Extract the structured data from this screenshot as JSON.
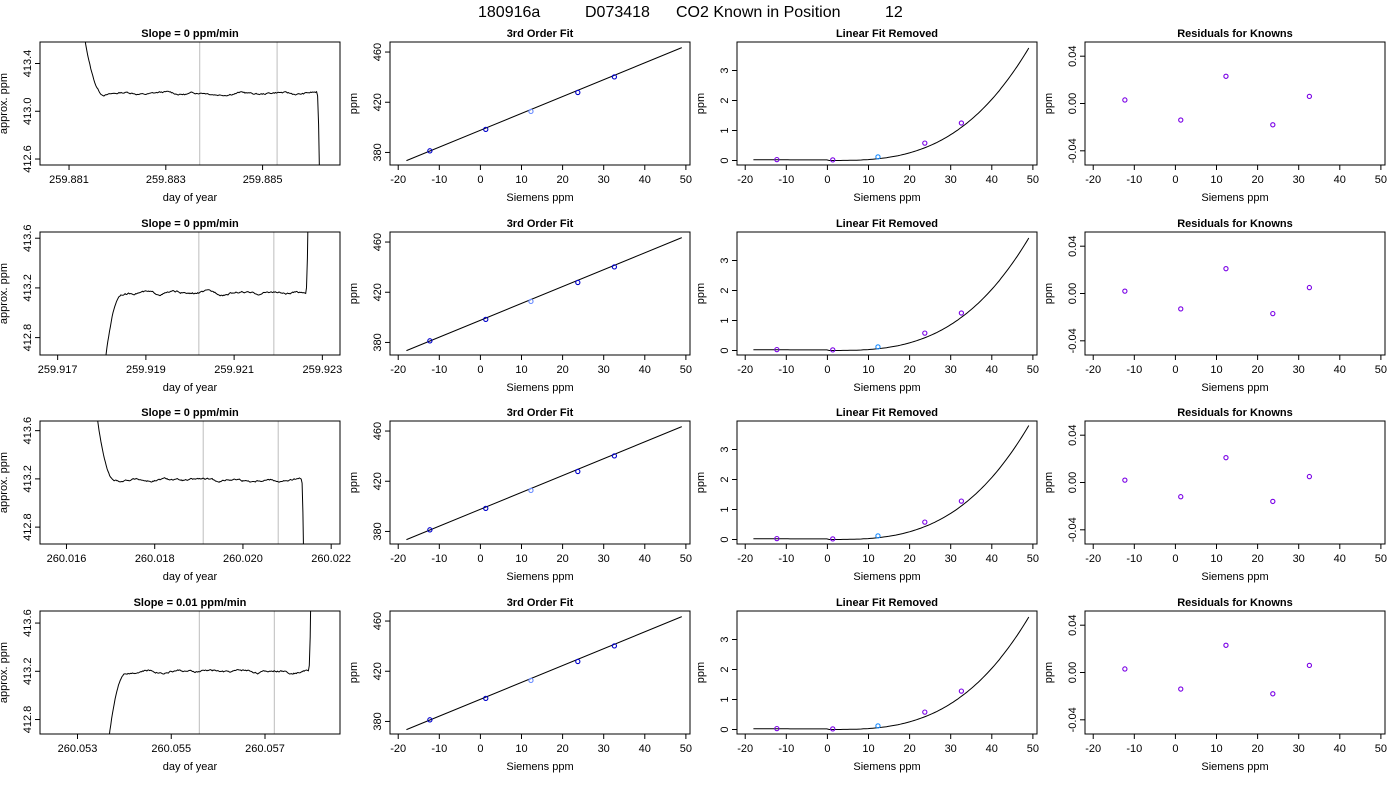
{
  "figure": {
    "title_parts": [
      "180916a",
      "D073418",
      "CO2 Known in Position",
      "12"
    ]
  },
  "chart_data": [
    {
      "id": "r1-trace",
      "type": "line",
      "title": "Slope =  0  ppm/min",
      "xlabel": "day of year",
      "ylabel": "approx. ppm",
      "xlim": [
        259.8804,
        259.8866
      ],
      "ylim": [
        412.55,
        413.58
      ],
      "xticks": [
        259.881,
        259.883,
        259.885
      ],
      "xtick_decimals": 3,
      "yticks": [
        412.6,
        413.0,
        413.4
      ],
      "ytick_decimals": 1,
      "vlines": [
        259.8837,
        259.8853
      ],
      "level": 413.15,
      "trace": {
        "x0": 259.8812,
        "x1": 259.8862,
        "lead": "down",
        "trail": "down"
      }
    },
    {
      "id": "r1-fit",
      "type": "scatter+line",
      "title": "3rd Order Fit",
      "xlabel": "Siemens ppm",
      "ylabel": "ppm",
      "xlim": [
        -22,
        51
      ],
      "ylim": [
        370,
        468
      ],
      "xticks": [
        -20,
        -10,
        0,
        10,
        20,
        30,
        40,
        50
      ],
      "xtick_decimals": 0,
      "yticks": [
        380,
        420,
        460
      ],
      "ytick_decimals": 0,
      "points": [
        {
          "x": -12.3,
          "y": 381.3
        },
        {
          "x": 1.3,
          "y": 398.4
        },
        {
          "x": 12.3,
          "y": 412.7
        },
        {
          "x": 23.7,
          "y": 427.8
        },
        {
          "x": 32.6,
          "y": 440.2
        }
      ],
      "fit": {
        "x0": -18,
        "x1": 49,
        "y0": 373.5,
        "y1": 463.5
      }
    },
    {
      "id": "r1-lin",
      "type": "scatter+line",
      "title": "Linear Fit Removed",
      "xlabel": "Siemens ppm",
      "ylabel": "ppm",
      "xlim": [
        -22,
        51
      ],
      "ylim": [
        -0.15,
        3.95
      ],
      "xticks": [
        -20,
        -10,
        0,
        10,
        20,
        30,
        40,
        50
      ],
      "xtick_decimals": 0,
      "yticks": [
        0,
        1,
        2,
        3
      ],
      "ytick_decimals": 0,
      "points": [
        {
          "x": -12.3,
          "y": 0.03
        },
        {
          "x": 1.3,
          "y": 0.02
        },
        {
          "x": 12.3,
          "y": 0.12
        },
        {
          "x": 23.7,
          "y": 0.58
        },
        {
          "x": 32.6,
          "y": 1.25
        }
      ],
      "curve_x": [
        -18,
        49
      ],
      "curve_end": 3.75
    },
    {
      "id": "r1-res",
      "type": "scatter",
      "title": "Residuals for Knowns",
      "xlabel": "Siemens ppm",
      "ylabel": "ppm",
      "xlim": [
        -22,
        51
      ],
      "ylim": [
        -0.052,
        0.052
      ],
      "xticks": [
        -20,
        -10,
        0,
        10,
        20,
        30,
        40,
        50
      ],
      "xtick_decimals": 0,
      "yticks": [
        -0.04,
        0.0,
        0.04
      ],
      "ytick_decimals": 2,
      "points": [
        {
          "x": -12.3,
          "y": 0.003
        },
        {
          "x": 1.3,
          "y": -0.014
        },
        {
          "x": 12.3,
          "y": 0.023
        },
        {
          "x": 23.7,
          "y": -0.018
        },
        {
          "x": 32.6,
          "y": 0.006
        }
      ]
    },
    {
      "id": "r2-trace",
      "type": "line",
      "title": "Slope =  0  ppm/min",
      "xlabel": "day of year",
      "ylabel": "approx. ppm",
      "xlim": [
        259.9166,
        259.9234
      ],
      "ylim": [
        412.66,
        413.65
      ],
      "xticks": [
        259.917,
        259.919,
        259.921,
        259.923
      ],
      "xtick_decimals": 3,
      "yticks": [
        412.8,
        413.2,
        413.6
      ],
      "ytick_decimals": 1,
      "vlines": [
        259.9202,
        259.9219
      ],
      "level": 413.16,
      "trace": {
        "x0": 259.918,
        "x1": 259.9227,
        "lead": "up",
        "trail": "up"
      }
    },
    {
      "id": "r2-fit",
      "type": "scatter+line",
      "title": "3rd Order Fit",
      "xlabel": "Siemens ppm",
      "ylabel": "ppm",
      "xlim": [
        -22,
        51
      ],
      "ylim": [
        370,
        468
      ],
      "xticks": [
        -20,
        -10,
        0,
        10,
        20,
        30,
        40,
        50
      ],
      "xtick_decimals": 0,
      "yticks": [
        380,
        420,
        460
      ],
      "ytick_decimals": 0,
      "points": [
        {
          "x": -12.3,
          "y": 381.3
        },
        {
          "x": 1.3,
          "y": 398.4
        },
        {
          "x": 12.3,
          "y": 412.7
        },
        {
          "x": 23.7,
          "y": 427.8
        },
        {
          "x": 32.6,
          "y": 440.2
        }
      ],
      "fit": {
        "x0": -18,
        "x1": 49,
        "y0": 373.5,
        "y1": 463.5
      }
    },
    {
      "id": "r2-lin",
      "type": "scatter+line",
      "title": "Linear Fit Removed",
      "xlabel": "Siemens ppm",
      "ylabel": "ppm",
      "xlim": [
        -22,
        51
      ],
      "ylim": [
        -0.15,
        3.95
      ],
      "xticks": [
        -20,
        -10,
        0,
        10,
        20,
        30,
        40,
        50
      ],
      "xtick_decimals": 0,
      "yticks": [
        0,
        1,
        2,
        3
      ],
      "ytick_decimals": 0,
      "points": [
        {
          "x": -12.3,
          "y": 0.03
        },
        {
          "x": 1.3,
          "y": 0.02
        },
        {
          "x": 12.3,
          "y": 0.12
        },
        {
          "x": 23.7,
          "y": 0.58
        },
        {
          "x": 32.6,
          "y": 1.25
        }
      ],
      "curve_x": [
        -18,
        49
      ],
      "curve_end": 3.75
    },
    {
      "id": "r2-res",
      "type": "scatter",
      "title": "Residuals for Knowns",
      "xlabel": "Siemens ppm",
      "ylabel": "ppm",
      "xlim": [
        -22,
        51
      ],
      "ylim": [
        -0.052,
        0.052
      ],
      "xticks": [
        -20,
        -10,
        0,
        10,
        20,
        30,
        40,
        50
      ],
      "xtick_decimals": 0,
      "yticks": [
        -0.04,
        0.0,
        0.04
      ],
      "ytick_decimals": 2,
      "points": [
        {
          "x": -12.3,
          "y": 0.002
        },
        {
          "x": 1.3,
          "y": -0.013
        },
        {
          "x": 12.3,
          "y": 0.021
        },
        {
          "x": 23.7,
          "y": -0.017
        },
        {
          "x": 32.6,
          "y": 0.005
        }
      ]
    },
    {
      "id": "r3-trace",
      "type": "line",
      "title": "Slope =  0  ppm/min",
      "xlabel": "day of year",
      "ylabel": "approx. ppm",
      "xlim": [
        259.9158,
        260.0222
      ],
      "ylim": [
        412.66,
        413.68
      ],
      "xlim_actual": [
        260.0154,
        260.0222
      ],
      "xticks": [
        260.016,
        260.018,
        260.02,
        260.022
      ],
      "xtick_decimals": 3,
      "yticks": [
        412.8,
        413.2,
        413.6
      ],
      "ytick_decimals": 1,
      "vlines": [
        260.0191,
        260.0208
      ],
      "level": 413.19,
      "trace": {
        "x0": 260.0166,
        "x1": 260.0214,
        "lead": "down",
        "trail": "down"
      }
    },
    {
      "id": "r3-fit",
      "type": "scatter+line",
      "title": "3rd Order Fit",
      "xlabel": "Siemens ppm",
      "ylabel": "ppm",
      "xlim": [
        -22,
        51
      ],
      "ylim": [
        370,
        468
      ],
      "xticks": [
        -20,
        -10,
        0,
        10,
        20,
        30,
        40,
        50
      ],
      "xtick_decimals": 0,
      "yticks": [
        380,
        420,
        460
      ],
      "ytick_decimals": 0,
      "points": [
        {
          "x": -12.3,
          "y": 381.3
        },
        {
          "x": 1.3,
          "y": 398.4
        },
        {
          "x": 12.3,
          "y": 412.7
        },
        {
          "x": 23.7,
          "y": 427.8
        },
        {
          "x": 32.6,
          "y": 440.2
        }
      ],
      "fit": {
        "x0": -18,
        "x1": 49,
        "y0": 373.5,
        "y1": 463.5
      }
    },
    {
      "id": "r3-lin",
      "type": "scatter+line",
      "title": "Linear Fit Removed",
      "xlabel": "Siemens ppm",
      "ylabel": "ppm",
      "xlim": [
        -22,
        51
      ],
      "ylim": [
        -0.15,
        3.95
      ],
      "xticks": [
        -20,
        -10,
        0,
        10,
        20,
        30,
        40,
        50
      ],
      "xtick_decimals": 0,
      "yticks": [
        0,
        1,
        2,
        3
      ],
      "ytick_decimals": 0,
      "points": [
        {
          "x": -12.3,
          "y": 0.03
        },
        {
          "x": 1.3,
          "y": 0.02
        },
        {
          "x": 12.3,
          "y": 0.12
        },
        {
          "x": 23.7,
          "y": 0.58
        },
        {
          "x": 32.6,
          "y": 1.28
        }
      ],
      "curve_x": [
        -18,
        49
      ],
      "curve_end": 3.8
    },
    {
      "id": "r3-res",
      "type": "scatter",
      "title": "Residuals for Knowns",
      "xlabel": "Siemens ppm",
      "ylabel": "ppm",
      "xlim": [
        -22,
        51
      ],
      "ylim": [
        -0.052,
        0.052
      ],
      "xticks": [
        -20,
        -10,
        0,
        10,
        20,
        30,
        40,
        50
      ],
      "xtick_decimals": 0,
      "yticks": [
        -0.04,
        0.0,
        0.04
      ],
      "ytick_decimals": 2,
      "points": [
        {
          "x": -12.3,
          "y": 0.002
        },
        {
          "x": 1.3,
          "y": -0.012
        },
        {
          "x": 12.3,
          "y": 0.021
        },
        {
          "x": 23.7,
          "y": -0.016
        },
        {
          "x": 32.6,
          "y": 0.005
        }
      ]
    },
    {
      "id": "r4-trace",
      "type": "line",
      "title": "Slope =  0.01  ppm/min",
      "xlabel": "day of year",
      "ylabel": "approx. ppm",
      "xlim": [
        260.0522,
        260.0586
      ],
      "ylim": [
        412.68,
        413.7
      ],
      "xticks": [
        260.053,
        260.055,
        260.057
      ],
      "xtick_decimals": 3,
      "yticks": [
        412.8,
        413.2,
        413.6
      ],
      "ytick_decimals": 1,
      "vlines": [
        260.0556,
        260.0572
      ],
      "level": 413.2,
      "trace": {
        "x0": 260.0536,
        "x1": 260.058,
        "lead": "up",
        "trail": "up"
      }
    },
    {
      "id": "r4-fit",
      "type": "scatter+line",
      "title": "3rd Order Fit",
      "xlabel": "Siemens ppm",
      "ylabel": "ppm",
      "xlim": [
        -22,
        51
      ],
      "ylim": [
        370,
        468
      ],
      "xticks": [
        -20,
        -10,
        0,
        10,
        20,
        30,
        40,
        50
      ],
      "xtick_decimals": 0,
      "yticks": [
        380,
        420,
        460
      ],
      "ytick_decimals": 0,
      "points": [
        {
          "x": -12.3,
          "y": 381.3
        },
        {
          "x": 1.3,
          "y": 398.4
        },
        {
          "x": 12.3,
          "y": 412.7
        },
        {
          "x": 23.7,
          "y": 427.8
        },
        {
          "x": 32.6,
          "y": 440.2
        }
      ],
      "fit": {
        "x0": -18,
        "x1": 49,
        "y0": 373.5,
        "y1": 463.5
      }
    },
    {
      "id": "r4-lin",
      "type": "scatter+line",
      "title": "Linear Fit Removed",
      "xlabel": "Siemens ppm",
      "ylabel": "ppm",
      "xlim": [
        -22,
        51
      ],
      "ylim": [
        -0.15,
        3.95
      ],
      "xticks": [
        -20,
        -10,
        0,
        10,
        20,
        30,
        40,
        50
      ],
      "xtick_decimals": 0,
      "yticks": [
        0,
        1,
        2,
        3
      ],
      "ytick_decimals": 0,
      "points": [
        {
          "x": -12.3,
          "y": 0.03
        },
        {
          "x": 1.3,
          "y": 0.02
        },
        {
          "x": 12.3,
          "y": 0.12
        },
        {
          "x": 23.7,
          "y": 0.58
        },
        {
          "x": 32.6,
          "y": 1.28
        }
      ],
      "curve_x": [
        -18,
        49
      ],
      "curve_end": 3.75
    },
    {
      "id": "r4-res",
      "type": "scatter",
      "title": "Residuals for Knowns",
      "xlabel": "Siemens ppm",
      "ylabel": "ppm",
      "xlim": [
        -22,
        51
      ],
      "ylim": [
        -0.052,
        0.052
      ],
      "xticks": [
        -20,
        -10,
        0,
        10,
        20,
        30,
        40,
        50
      ],
      "xtick_decimals": 0,
      "yticks": [
        -0.04,
        0.0,
        0.04
      ],
      "ytick_decimals": 2,
      "points": [
        {
          "x": -12.3,
          "y": 0.003
        },
        {
          "x": 1.3,
          "y": -0.014
        },
        {
          "x": 12.3,
          "y": 0.023
        },
        {
          "x": 23.7,
          "y": -0.018
        },
        {
          "x": 32.6,
          "y": 0.006
        }
      ]
    }
  ],
  "colors": {
    "axis": "#000000",
    "curve": "#000000",
    "vline": "#c8c8c8",
    "fit_points": [
      "#0000cc",
      "#0000cc",
      "#6a8cff",
      "#0000cc",
      "#0000cc"
    ],
    "residual_points": "#7a00e6",
    "linfit_points": "#7a00e6",
    "linfit_highlight": "#1a8cff"
  }
}
